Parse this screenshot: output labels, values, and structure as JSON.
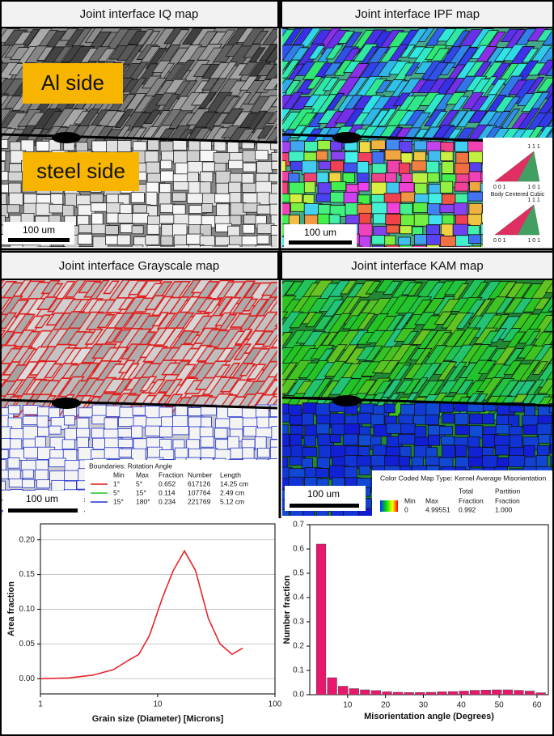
{
  "panels": {
    "iq": {
      "title": "Joint interface IQ map",
      "labels": [
        "Al side",
        "steel side"
      ],
      "scale_bar": "100 um"
    },
    "ipf": {
      "title": "Joint interface IPF map",
      "scale_bar": "100 um",
      "legend": {
        "caption": "Body Centered Cubic",
        "poles": [
          "1 1 1",
          "0 0 1",
          "1 0 1"
        ]
      }
    },
    "grayscale": {
      "title": "Joint interface Grayscale map",
      "scale_bar": "100 um",
      "table": {
        "caption": "Boundaries: Rotation Angle",
        "header": [
          "Min",
          "Max",
          "Fraction",
          "Number",
          "Length"
        ],
        "rows": [
          [
            "1°",
            "5°",
            0.652,
            617126,
            "14.25 cm"
          ],
          [
            "5°",
            "15°",
            0.114,
            107764,
            "2.49 cm"
          ],
          [
            "15°",
            "180°",
            0.234,
            221769,
            "5.12 cm"
          ]
        ],
        "colors": [
          "#e01010",
          "#22c022",
          "#2030d0"
        ]
      }
    },
    "kam": {
      "title": "Joint interface KAM map",
      "scale_bar": "100 um",
      "table": {
        "caption": "Color Coded Map Type: Kernel Average Misorientation",
        "header": [
          [
            "Min"
          ],
          [
            "Max"
          ],
          [
            "Total",
            "Fraction"
          ],
          [
            "Partition",
            "Fraction"
          ]
        ],
        "row": [
          0,
          4.99551,
          0.992,
          "1.000"
        ]
      }
    }
  },
  "chart_data": [
    {
      "type": "line",
      "xlabel": "Grain size (Diameter) [Microns]",
      "ylabel": "Area fraction",
      "xscale": "log",
      "xlim": [
        1,
        100
      ],
      "xticks": [
        1,
        10,
        100
      ],
      "ylim": [
        -0.022,
        0.223
      ],
      "yticks": [
        {
          "value": 0,
          "label": "0.00"
        },
        {
          "value": 0.05,
          "label": "0.05"
        },
        {
          "value": 0.1,
          "label": "0.10"
        },
        {
          "value": 0.15,
          "label": "0.15"
        },
        {
          "value": 0.2,
          "label": "0.20"
        }
      ],
      "grid": true,
      "series": [
        {
          "name": "Grain size",
          "color": "#e8242a",
          "x": [
            1,
            1.74,
            2.8,
            4.2,
            5.7,
            6.9,
            8.5,
            11,
            13.5,
            16.9,
            21,
            27,
            34,
            43,
            53
          ],
          "values": [
            0,
            0.001,
            0.005,
            0.013,
            0.027,
            0.035,
            0.062,
            0.117,
            0.155,
            0.184,
            0.156,
            0.087,
            0.05,
            0.035,
            0.044
          ]
        }
      ]
    },
    {
      "type": "bar",
      "xlabel": "Misorientation angle (Degrees)",
      "ylabel": "Number fraction",
      "xlim": [
        0,
        63
      ],
      "xticks": [
        10,
        20,
        30,
        40,
        50,
        60
      ],
      "ylim": [
        0,
        0.7
      ],
      "yticks": [
        {
          "value": 0,
          "label": "0.0"
        },
        {
          "value": 0.1,
          "label": "0.1"
        },
        {
          "value": 0.2,
          "label": "0.2"
        },
        {
          "value": 0.3,
          "label": "0.3"
        },
        {
          "value": 0.4,
          "label": "0.4"
        },
        {
          "value": 0.5,
          "label": "0.5"
        },
        {
          "value": 0.6,
          "label": "0.6"
        },
        {
          "value": 0.7,
          "label": "0.7"
        }
      ],
      "color": "#e8176b",
      "x": [
        3.0,
        5.9,
        8.8,
        11.7,
        14.6,
        17.5,
        20.4,
        23.3,
        26.2,
        29.1,
        32.0,
        34.9,
        37.8,
        40.7,
        43.6,
        46.5,
        49.4,
        52.3,
        55.2,
        58.1,
        61.0
      ],
      "values": [
        0.62,
        0.07,
        0.035,
        0.025,
        0.02,
        0.017,
        0.012,
        0.01,
        0.009,
        0.009,
        0.01,
        0.012,
        0.013,
        0.015,
        0.018,
        0.019,
        0.02,
        0.02,
        0.018,
        0.015,
        0.008
      ]
    }
  ]
}
